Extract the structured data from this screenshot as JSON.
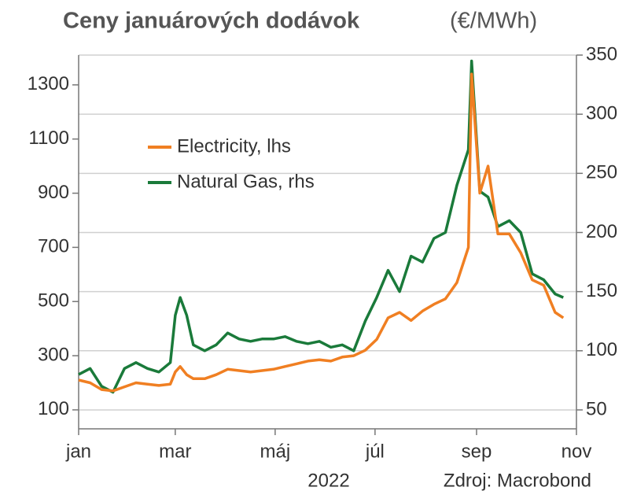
{
  "chart_data": {
    "type": "line",
    "title": "Ceny januárových dodávok",
    "subtitle": "(€/MWh)",
    "xlabel": "2022",
    "source": "Zdroj: Macrobond",
    "x": [
      0,
      7,
      14,
      21,
      28,
      35,
      42,
      49,
      56,
      59,
      62,
      66,
      70,
      77,
      84,
      91,
      98,
      105,
      112,
      119,
      126,
      133,
      140,
      147,
      154,
      161,
      168,
      175,
      182,
      189,
      196,
      203,
      210,
      217,
      224,
      231,
      238,
      240,
      245,
      250,
      256,
      263,
      270,
      277,
      284,
      291,
      296
    ],
    "xlim": [
      0,
      304
    ],
    "xticks": [
      {
        "value": 0,
        "label": "jan"
      },
      {
        "value": 59,
        "label": "mar"
      },
      {
        "value": 120,
        "label": "máj"
      },
      {
        "value": 181,
        "label": "júl"
      },
      {
        "value": 243,
        "label": "sep"
      },
      {
        "value": 304,
        "label": "nov"
      }
    ],
    "ylim": [
      30,
      1410
    ],
    "yticks": [
      100,
      300,
      500,
      700,
      900,
      1100,
      1300
    ],
    "y2lim": [
      34,
      350
    ],
    "y2ticks": [
      50,
      100,
      150,
      200,
      250,
      300,
      350
    ],
    "grid": "y2",
    "series": [
      {
        "name": "Electricity, lhs",
        "color": "#f07f22",
        "axis": "y",
        "values": [
          210,
          200,
          175,
          170,
          185,
          200,
          195,
          190,
          195,
          240,
          260,
          230,
          215,
          215,
          230,
          250,
          245,
          240,
          245,
          250,
          260,
          270,
          280,
          285,
          280,
          295,
          300,
          320,
          360,
          440,
          460,
          430,
          465,
          490,
          510,
          570,
          700,
          1340,
          900,
          1000,
          750,
          750,
          680,
          580,
          560,
          460,
          440
        ]
      },
      {
        "name": "Natural Gas, rhs",
        "color": "#1a7a3a",
        "axis": "y2",
        "values": [
          80,
          85,
          70,
          65,
          85,
          90,
          85,
          82,
          90,
          130,
          145,
          130,
          105,
          100,
          105,
          115,
          110,
          108,
          110,
          110,
          112,
          108,
          106,
          108,
          103,
          105,
          100,
          125,
          145,
          168,
          150,
          180,
          175,
          195,
          200,
          240,
          270,
          345,
          235,
          230,
          205,
          210,
          200,
          165,
          160,
          148,
          145
        ]
      }
    ]
  }
}
